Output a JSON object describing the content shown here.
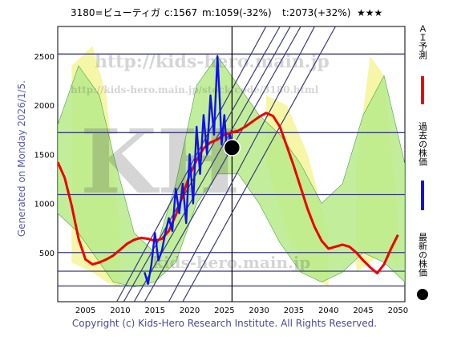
{
  "header": {
    "ticker_name": "3180=ビューティガ",
    "current": "c:1567",
    "min": "m:1059(-32%)",
    "target": "t:2073(+32%)",
    "stars": "★★★"
  },
  "side": {
    "generated": "Generated on Monday 2026/1/5."
  },
  "footer": {
    "copyright": "Copyright (c) Kids-Hero Research Institute. All Rights Reserved."
  },
  "legend": [
    {
      "label": "ＡＩ予測",
      "color": "#ee0000"
    },
    {
      "label": "過去の株価",
      "color": "#1010ee"
    },
    {
      "label": "最新の株価",
      "color": "#000000"
    }
  ],
  "watermark": {
    "url1": "http://kids-hero.main.jp",
    "url2": "http://kids-hero.main.jp/stock/code/3180.html",
    "kh": "KH",
    "mid": "kids-hero.main.jp"
  },
  "colors": {
    "forecast": "#ee0000",
    "past": "#1010ee",
    "latest": "#000000",
    "hline": "#3a3a7a",
    "band_green": "#b7eb8a",
    "band_yellow": "#f6f6a8",
    "grid_text": "#000000"
  },
  "chart_data": {
    "type": "line",
    "xlim": [
      2001,
      2051
    ],
    "ylim": [
      0,
      2800
    ],
    "x_ticks": [
      2005,
      2010,
      2015,
      2020,
      2025,
      2030,
      2035,
      2040,
      2045,
      2050
    ],
    "y_ticks": [
      500,
      1000,
      1500,
      2000,
      2500
    ],
    "horizontal_lines": [
      160,
      310,
      500,
      1090,
      1720,
      2520
    ],
    "latest_point": {
      "x": 2026.1,
      "y": 1567
    },
    "vertical_marker_x": 2026.1,
    "diagonal_lines": [
      {
        "x1": 2009.5,
        "y1": 0,
        "x2": 2031.0,
        "y2": 2800
      },
      {
        "x1": 2010.5,
        "y1": 0,
        "x2": 2033.0,
        "y2": 2800
      },
      {
        "x1": 2012.0,
        "y1": 0,
        "x2": 2034.5,
        "y2": 2800
      },
      {
        "x1": 2013.5,
        "y1": 0,
        "x2": 2036.0,
        "y2": 2800
      },
      {
        "x1": 2017.0,
        "y1": 0,
        "x2": 2038.0,
        "y2": 2800
      },
      {
        "x1": 2019.0,
        "y1": 0,
        "x2": 2041.0,
        "y2": 2800
      }
    ],
    "series": [
      {
        "name": "ＡＩ予測",
        "x": [
          2001,
          2002,
          2003,
          2004,
          2005,
          2006,
          2007,
          2008,
          2009,
          2010,
          2011,
          2012,
          2013,
          2014,
          2015,
          2016,
          2017,
          2018,
          2019,
          2020,
          2021,
          2022,
          2023,
          2024,
          2025,
          2026,
          2027,
          2028,
          2029,
          2030,
          2031,
          2032,
          2033,
          2034,
          2035,
          2036,
          2037,
          2038,
          2039,
          2040,
          2041,
          2042,
          2043,
          2044,
          2045,
          2046,
          2047,
          2048,
          2049,
          2050
        ],
        "y": [
          1420,
          1260,
          980,
          640,
          430,
          380,
          400,
          430,
          470,
          530,
          590,
          630,
          650,
          640,
          620,
          640,
          720,
          880,
          1080,
          1290,
          1440,
          1560,
          1620,
          1650,
          1700,
          1720,
          1740,
          1780,
          1830,
          1880,
          1920,
          1890,
          1780,
          1580,
          1380,
          1160,
          940,
          760,
          620,
          540,
          560,
          580,
          560,
          500,
          420,
          350,
          290,
          380,
          540,
          680
        ]
      },
      {
        "name": "過去の株価",
        "x": [
          2013.5,
          2014.0,
          2014.5,
          2015.0,
          2015.5,
          2016.0,
          2016.5,
          2017.0,
          2017.5,
          2018.0,
          2018.5,
          2019.0,
          2019.5,
          2020.0,
          2020.5,
          2021.0,
          2021.5,
          2022.0,
          2022.5,
          2023.0,
          2023.5,
          2024.0,
          2024.3,
          2024.6,
          2025.0,
          2025.4,
          2025.8,
          2026.1
        ],
        "y": [
          300,
          180,
          380,
          700,
          420,
          520,
          700,
          850,
          720,
          1150,
          900,
          1200,
          800,
          1500,
          1000,
          1780,
          1300,
          1900,
          1500,
          2100,
          1700,
          2500,
          2100,
          1600,
          1900,
          1500,
          1700,
          1567
        ]
      }
    ],
    "bands_green": [
      {
        "x": [
          2001,
          2004,
          2007,
          2009,
          2012,
          2015,
          2018,
          2021,
          2024,
          2027,
          2030,
          2033,
          2036,
          2039,
          2042,
          2045,
          2048,
          2051
        ],
        "lo": [
          900,
          700,
          400,
          200,
          150,
          200,
          400,
          1000,
          1300,
          1300,
          1000,
          600,
          300,
          200,
          300,
          500,
          400,
          200
        ],
        "hi": [
          1800,
          2400,
          2100,
          1500,
          700,
          500,
          1200,
          2200,
          2500,
          2200,
          1900,
          1700,
          1400,
          1000,
          1200,
          1900,
          2300,
          1400
        ]
      }
    ],
    "bands_yellow": [
      {
        "x": [
          2003,
          2006,
          2008,
          2010
        ],
        "lo": [
          400,
          300,
          200,
          150
        ],
        "hi": [
          2400,
          2600,
          2100,
          700
        ]
      },
      {
        "x": [
          2031,
          2034,
          2037,
          2040
        ],
        "lo": [
          1400,
          700,
          300,
          150
        ],
        "hi": [
          2100,
          2000,
          1500,
          700
        ]
      },
      {
        "x": [
          2044,
          2046,
          2048,
          2050
        ],
        "lo": [
          300,
          400,
          500,
          400
        ],
        "hi": [
          1400,
          2500,
          2300,
          900
        ]
      }
    ]
  }
}
